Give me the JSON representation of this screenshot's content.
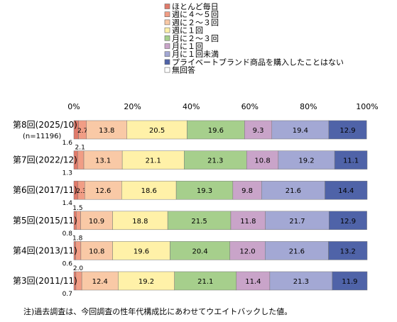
{
  "chart_data": {
    "type": "bar",
    "orientation": "horizontal",
    "stacked": true,
    "percent_axis": true,
    "xlim": [
      0,
      100
    ],
    "xticks": [
      "0%",
      "20%",
      "40%",
      "60%",
      "80%",
      "100%"
    ],
    "legend_position": "top",
    "grid": false,
    "categories": [
      {
        "label": "第8回(2025/10)",
        "sublabel": "(n=11196)"
      },
      {
        "label": "第7回(2022/12)",
        "sublabel": ""
      },
      {
        "label": "第6回(2017/11)",
        "sublabel": ""
      },
      {
        "label": "第5回(2015/11)",
        "sublabel": ""
      },
      {
        "label": "第4回(2013/11)",
        "sublabel": ""
      },
      {
        "label": "第3回(2011/11)",
        "sublabel": ""
      }
    ],
    "series": [
      {
        "name": "ほとんど毎日",
        "color": "#e07a6a",
        "values": [
          1.6,
          1.3,
          1.4,
          0.8,
          0.6,
          0.7
        ],
        "labels": [
          "1.6",
          "1.3",
          "1.4",
          "0.8",
          "0.6",
          "0.7"
        ]
      },
      {
        "name": "週に４～５回",
        "color": "#f19d85",
        "values": [
          2.7,
          2.1,
          2.3,
          1.5,
          1.8,
          2.0
        ],
        "labels": [
          "2.7",
          "2.1",
          "2.3",
          "1.5",
          "1.8",
          "2.0"
        ]
      },
      {
        "name": "週に２～３回",
        "color": "#f9c9a6",
        "values": [
          13.8,
          13.1,
          12.6,
          10.9,
          10.8,
          12.4
        ],
        "labels": [
          "13.8",
          "13.1",
          "12.6",
          "10.9",
          "10.8",
          "12.4"
        ]
      },
      {
        "name": "週に１回",
        "color": "#fff1a8",
        "values": [
          20.5,
          21.1,
          18.6,
          18.8,
          19.6,
          19.2
        ],
        "labels": [
          "20.5",
          "21.1",
          "18.6",
          "18.8",
          "19.6",
          "19.2"
        ]
      },
      {
        "name": "月に２～３回",
        "color": "#a6cf8c",
        "values": [
          19.6,
          21.3,
          19.3,
          21.5,
          20.4,
          21.1
        ],
        "labels": [
          "19.6",
          "21.3",
          "19.3",
          "21.5",
          "20.4",
          "21.1"
        ]
      },
      {
        "name": "月に１回",
        "color": "#c9a4c9",
        "values": [
          9.3,
          10.8,
          9.8,
          11.8,
          12.0,
          11.4
        ],
        "labels": [
          "9.3",
          "10.8",
          "9.8",
          "11.8",
          "12.0",
          "11.4"
        ]
      },
      {
        "name": "月に１回未満",
        "color": "#a3a8d4",
        "values": [
          19.4,
          19.2,
          21.6,
          21.7,
          21.6,
          21.3
        ],
        "labels": [
          "19.4",
          "19.2",
          "21.6",
          "21.7",
          "21.6",
          "21.3"
        ]
      },
      {
        "name": "プライベートブランド商品を購入したことはない",
        "color": "#4f63a8",
        "values": [
          12.9,
          11.1,
          14.4,
          12.9,
          13.2,
          11.9
        ],
        "labels": [
          "12.9",
          "11.1",
          "14.4",
          "12.9",
          "13.2",
          "11.9"
        ]
      },
      {
        "name": "無回答",
        "color": "#ffffff",
        "values": [
          0,
          0,
          0,
          0,
          0,
          0
        ],
        "labels": [
          "",
          "",
          "",
          "",
          "",
          ""
        ]
      }
    ],
    "note": "注)過去調査は、今回調査の性年代構成比にあわせてウエイトバックした値。"
  }
}
